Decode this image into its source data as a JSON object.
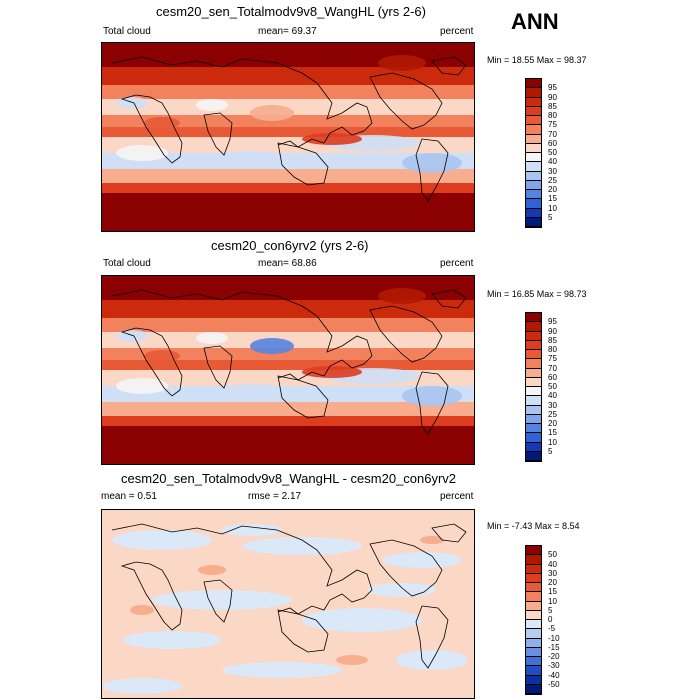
{
  "season": "ANN",
  "panels": [
    {
      "title": "cesm20_sen_Totalmodv9v8_WangHL (yrs 2-6)",
      "left_label": "Total cloud",
      "center_label": "mean=  69.37",
      "right_label": "percent",
      "minmax": "Min =  18.55 Max =  98.37",
      "colorbar": {
        "labels": [
          "95",
          "90",
          "85",
          "80",
          "75",
          "70",
          "60",
          "50",
          "40",
          "30",
          "25",
          "20",
          "15",
          "10",
          "5"
        ],
        "colors": [
          "#8b0000",
          "#b01800",
          "#cc2a0d",
          "#dd3c1e",
          "#e85a36",
          "#f2825e",
          "#f7ad8e",
          "#fbd8c6",
          "#f5f5f5",
          "#cfdff5",
          "#a9c4f0",
          "#7fa5e8",
          "#5584e0",
          "#2d63d6",
          "#1438b8",
          "#001a7a"
        ]
      },
      "map_style": "abs"
    },
    {
      "title": "cesm20_con6yrv2 (yrs 2-6)",
      "left_label": "Total cloud",
      "center_label": "mean=  68.86",
      "right_label": "percent",
      "minmax": "Min =  16.85 Max =  98.73",
      "colorbar": {
        "labels": [
          "95",
          "90",
          "85",
          "80",
          "75",
          "70",
          "60",
          "50",
          "40",
          "30",
          "25",
          "20",
          "15",
          "10",
          "5"
        ],
        "colors": [
          "#8b0000",
          "#b01800",
          "#cc2a0d",
          "#dd3c1e",
          "#e85a36",
          "#f2825e",
          "#f7ad8e",
          "#fbd8c6",
          "#f5f5f5",
          "#cfdff5",
          "#a9c4f0",
          "#7fa5e8",
          "#5584e0",
          "#2d63d6",
          "#1438b8",
          "#001a7a"
        ]
      },
      "map_style": "abs"
    },
    {
      "title": "cesm20_sen_Totalmodv9v8_WangHL - cesm20_con6yrv2",
      "left_label": "mean =   0.51",
      "center_label": "rmse =   2.17",
      "right_label": "percent",
      "minmax": "Min =  -7.43 Max =   8.54",
      "colorbar": {
        "labels": [
          "50",
          "40",
          "30",
          "20",
          "15",
          "10",
          "5",
          "0",
          "-5",
          "-10",
          "-15",
          "-20",
          "-30",
          "-40",
          "-50"
        ],
        "colors": [
          "#8b0000",
          "#b01800",
          "#cc2a0d",
          "#dd3c1e",
          "#e85a36",
          "#f2825e",
          "#f7ad8e",
          "#fbd8c6",
          "#dbe8f8",
          "#b6cdf2",
          "#8fb0ea",
          "#6890e2",
          "#4070d8",
          "#1e4ec4",
          "#0d2fa0",
          "#001a7a"
        ]
      },
      "map_style": "diff"
    }
  ]
}
